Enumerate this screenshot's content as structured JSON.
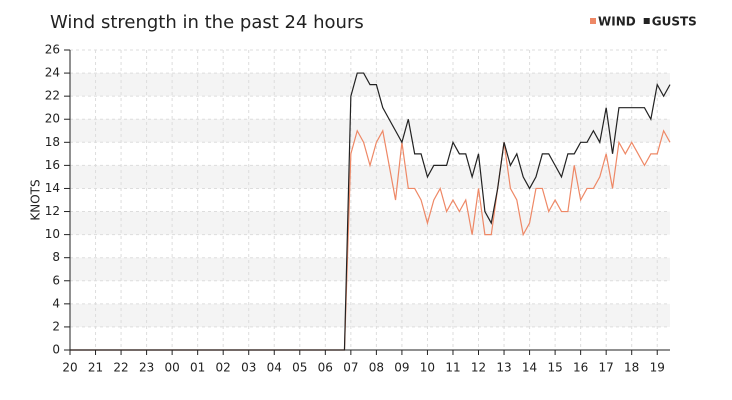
{
  "chart_data": {
    "type": "line",
    "title": "Wind strength in the past 24 hours",
    "y_label": "KNOTS",
    "x": [
      0,
      10.75,
      11,
      11.25,
      11.5,
      11.75,
      12,
      12.25,
      12.5,
      12.75,
      13,
      13.25,
      13.5,
      13.75,
      14,
      14.25,
      14.5,
      14.75,
      15,
      15.25,
      15.5,
      15.75,
      16,
      16.25,
      16.5,
      16.75,
      17,
      17.25,
      17.5,
      17.75,
      18,
      18.25,
      18.5,
      18.75,
      19,
      19.25,
      19.5,
      19.75,
      20,
      20.25,
      20.5,
      20.75,
      21,
      21.25,
      21.5,
      21.75,
      22,
      22.25,
      22.5,
      22.75,
      23,
      23.25,
      23.5
    ],
    "series": [
      {
        "name": "WIND",
        "color": "#ee8866",
        "values": [
          0,
          0,
          17,
          19,
          18,
          16,
          18,
          19,
          16,
          13,
          18,
          14,
          14,
          13,
          11,
          13,
          14,
          12,
          13,
          12,
          13,
          10,
          14,
          10,
          10,
          14,
          18,
          14,
          13,
          10,
          11,
          14,
          14,
          12,
          13,
          12,
          12,
          16,
          13,
          14,
          14,
          15,
          17,
          14,
          18,
          17,
          18,
          17,
          16,
          17,
          17,
          19,
          18
        ]
      },
      {
        "name": "GUSTS",
        "color": "#222222",
        "values": [
          0,
          0,
          22,
          24,
          24,
          23,
          23,
          21,
          20,
          19,
          18,
          20,
          17,
          17,
          15,
          16,
          16,
          16,
          18,
          17,
          17,
          15,
          17,
          12,
          11,
          14,
          18,
          16,
          17,
          15,
          14,
          15,
          17,
          17,
          16,
          15,
          17,
          17,
          18,
          18,
          19,
          18,
          21,
          17,
          21,
          21,
          21,
          21,
          21,
          20,
          23,
          22,
          23
        ]
      }
    ],
    "xlim": [
      0,
      23.5
    ],
    "xticks": [
      {
        "value": 0,
        "label": "20"
      },
      {
        "value": 1,
        "label": "21"
      },
      {
        "value": 2,
        "label": "22"
      },
      {
        "value": 3,
        "label": "23"
      },
      {
        "value": 4,
        "label": "00"
      },
      {
        "value": 5,
        "label": "01"
      },
      {
        "value": 6,
        "label": "02"
      },
      {
        "value": 7,
        "label": "03"
      },
      {
        "value": 8,
        "label": "04"
      },
      {
        "value": 9,
        "label": "05"
      },
      {
        "value": 10,
        "label": "06"
      },
      {
        "value": 11,
        "label": "07"
      },
      {
        "value": 12,
        "label": "08"
      },
      {
        "value": 13,
        "label": "09"
      },
      {
        "value": 14,
        "label": "10"
      },
      {
        "value": 15,
        "label": "11"
      },
      {
        "value": 16,
        "label": "12"
      },
      {
        "value": 17,
        "label": "13"
      },
      {
        "value": 18,
        "label": "14"
      },
      {
        "value": 19,
        "label": "15"
      },
      {
        "value": 20,
        "label": "16"
      },
      {
        "value": 21,
        "label": "17"
      },
      {
        "value": 22,
        "label": "18"
      },
      {
        "value": 23,
        "label": "19"
      }
    ],
    "ylim": [
      0,
      26
    ],
    "yticks": [
      0,
      2,
      4,
      6,
      8,
      10,
      12,
      14,
      16,
      18,
      20,
      22,
      24,
      26
    ],
    "grid": true,
    "legend": "top-right"
  }
}
